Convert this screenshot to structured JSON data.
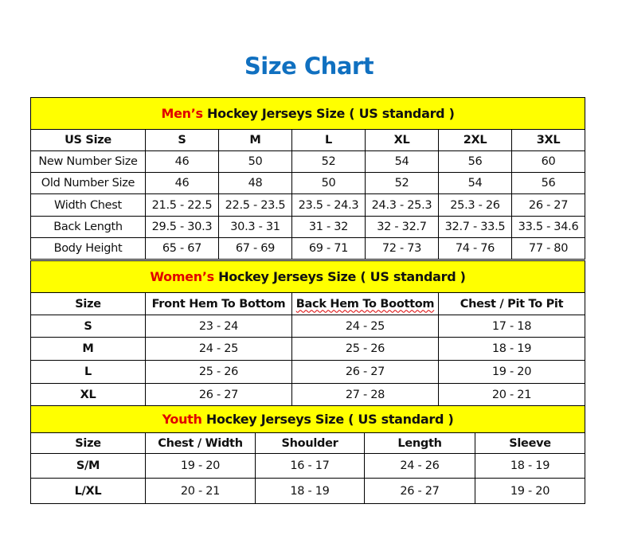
{
  "title": "Size Chart",
  "colors": {
    "title": "#1070c0",
    "header_bg": "#ffff00",
    "highlight": "#e00000"
  },
  "mens": {
    "highlight": "Men’s",
    "heading": " Hockey Jerseys Size ( US standard )",
    "columns": [
      "US Size",
      "S",
      "M",
      "L",
      "XL",
      "2XL",
      "3XL"
    ],
    "rows": [
      [
        "New Number Size",
        "46",
        "50",
        "52",
        "54",
        "56",
        "60"
      ],
      [
        "Old Number Size",
        "46",
        "48",
        "50",
        "52",
        "54",
        "56"
      ],
      [
        "Width Chest",
        "21.5 - 22.5",
        "22.5 - 23.5",
        "23.5 - 24.3",
        "24.3 - 25.3",
        "25.3 - 26",
        "26 - 27"
      ],
      [
        "Back Length",
        "29.5 - 30.3",
        "30.3 - 31",
        "31 - 32",
        "32 - 32.7",
        "32.7 - 33.5",
        "33.5 - 34.6"
      ],
      [
        "Body Height",
        "65 - 67",
        "67 - 69",
        "69 - 71",
        "72 - 73",
        "74 - 76",
        "77 - 80"
      ]
    ]
  },
  "womens": {
    "highlight": "Women’s",
    "heading": " Hockey Jerseys Size ( US standard )",
    "columns": [
      "Size",
      "Front Hem To Bottom",
      "Back Hem To Boottom",
      "Chest / Pit To Pit"
    ],
    "rows": [
      [
        "S",
        "23 - 24",
        "24 - 25",
        "17 - 18"
      ],
      [
        "M",
        "24 - 25",
        "25 - 26",
        "18 - 19"
      ],
      [
        "L",
        "25 - 26",
        "26 - 27",
        "19 - 20"
      ],
      [
        "XL",
        "26 - 27",
        "27 - 28",
        "20 - 21"
      ]
    ]
  },
  "youth": {
    "highlight": "Youth",
    "heading": " Hockey Jerseys Size ( US standard )",
    "columns": [
      "Size",
      "Chest / Width",
      "Shoulder",
      "Length",
      "Sleeve"
    ],
    "rows": [
      [
        "S/M",
        "19 - 20",
        "16 - 17",
        "24 - 26",
        "18 - 19"
      ],
      [
        "L/XL",
        "20 - 21",
        "18 - 19",
        "26 - 27",
        "19 - 20"
      ]
    ]
  }
}
